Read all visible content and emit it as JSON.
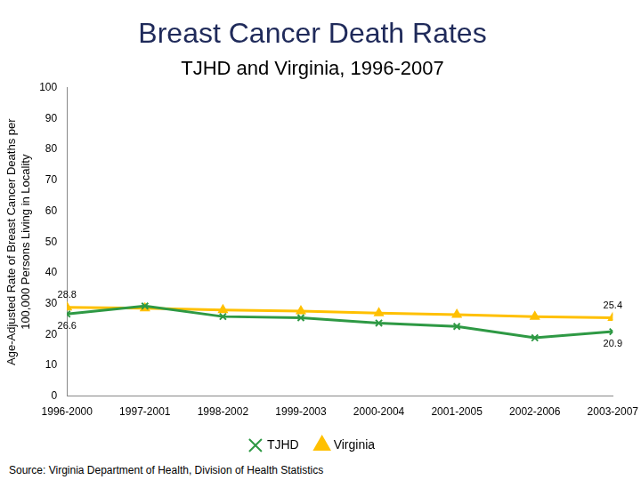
{
  "chart_data": {
    "type": "line",
    "title": "Breast Cancer Death Rates",
    "subtitle": "TJHD and Virginia, 1996-2007",
    "y_label": [
      "Age-Adjusted Rate of Breast Cancer Deaths per",
      "100,000 Persons Living in Locality"
    ],
    "source": "Source: Virginia Department of Health, Division of Health Statistics",
    "categories": [
      "1996-2000",
      "1997-2001",
      "1998-2002",
      "1999-2003",
      "2000-2004",
      "2001-2005",
      "2002-2006",
      "2003-2007"
    ],
    "series": [
      {
        "name": "TJHD",
        "color": "#2e9944",
        "marker": "x",
        "values": [
          26.6,
          29.2,
          25.8,
          25.4,
          23.7,
          22.6,
          18.9,
          20.9
        ],
        "value_labels": [
          "26.6",
          null,
          null,
          null,
          null,
          null,
          null,
          "20.9"
        ]
      },
      {
        "name": "Virginia",
        "color": "#ffc000",
        "marker": "triangle",
        "values": [
          28.8,
          28.5,
          27.9,
          27.6,
          26.9,
          26.4,
          25.8,
          25.4
        ],
        "value_labels": [
          "28.8",
          null,
          null,
          null,
          null,
          null,
          null,
          "25.4"
        ]
      }
    ],
    "ylim": [
      0,
      100
    ],
    "yticks": [
      0,
      10,
      20,
      30,
      40,
      50,
      60,
      70,
      80,
      90,
      100
    ],
    "grid": false,
    "legend": "bottom"
  }
}
